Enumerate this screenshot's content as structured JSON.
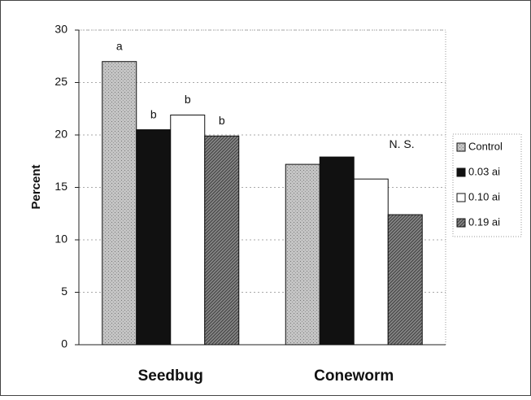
{
  "chart_data": {
    "type": "bar",
    "categories": [
      "Seedbug",
      "Coneworm"
    ],
    "series": [
      {
        "name": "Control",
        "color": "#c4c4c4",
        "values": [
          27,
          17.2
        ]
      },
      {
        "name": "0.03 ai",
        "color": "#111111",
        "values": [
          20.5,
          17.9
        ]
      },
      {
        "name": "0.10 ai",
        "color": "#ffffff",
        "values": [
          21.9,
          15.8
        ]
      },
      {
        "name": "0.19 ai",
        "color": "#8a8a8a",
        "values": [
          19.9,
          12.4
        ]
      }
    ],
    "annotations": [
      "a",
      "b",
      "b",
      "b",
      "N. S."
    ],
    "ylabel": "Percent",
    "ylim": [
      0,
      30
    ],
    "yticks": [
      0,
      5,
      10,
      15,
      20,
      25,
      30
    ],
    "grid": true,
    "legend": "right"
  }
}
